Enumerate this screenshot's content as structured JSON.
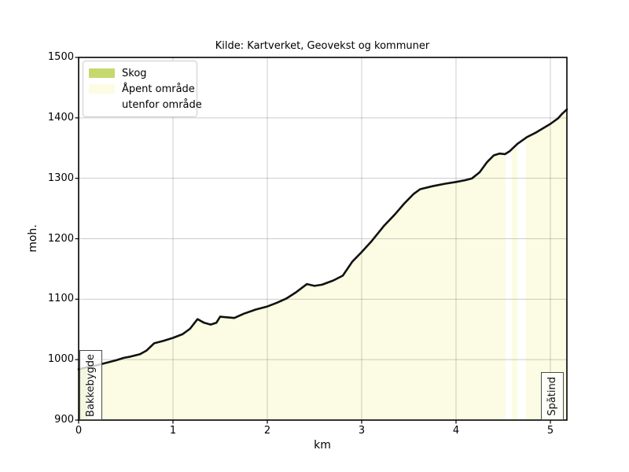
{
  "figure": {
    "title": "Kilde: Kartverket, Geovekst og kommuner",
    "xlabel": "km",
    "ylabel": "moh."
  },
  "legend": {
    "entries": [
      {
        "label": "Skog",
        "color": "#c5d96d"
      },
      {
        "label": "Åpent område",
        "color": "#fbfce3"
      },
      {
        "label": "utenfor område",
        "color": "#ffffff"
      }
    ]
  },
  "annotations": [
    {
      "text": "Bakkebygde",
      "x_km": 0.13
    },
    {
      "text": "Spåtind",
      "x_km": 5.02
    }
  ],
  "chart_data": {
    "type": "area",
    "title": "Kilde: Kartverket, Geovekst og kommuner",
    "xlabel": "km",
    "ylabel": "moh.",
    "xlim": [
      0,
      5.175
    ],
    "ylim": [
      900,
      1500
    ],
    "xticks": [
      0,
      1,
      2,
      3,
      4,
      5
    ],
    "yticks": [
      900,
      1000,
      1100,
      1200,
      1300,
      1400,
      1500
    ],
    "grid": true,
    "line_color": "#111111",
    "grid_color": "rgba(120,120,120,0.38)",
    "frame_color": "#000000",
    "profile": [
      [
        0.0,
        984
      ],
      [
        0.05,
        986
      ],
      [
        0.1,
        988
      ],
      [
        0.2,
        991
      ],
      [
        0.3,
        995
      ],
      [
        0.4,
        999
      ],
      [
        0.48,
        1003
      ],
      [
        0.55,
        1005
      ],
      [
        0.65,
        1009
      ],
      [
        0.72,
        1015
      ],
      [
        0.8,
        1027
      ],
      [
        0.9,
        1031
      ],
      [
        1.0,
        1036
      ],
      [
        1.1,
        1042
      ],
      [
        1.18,
        1051
      ],
      [
        1.26,
        1067
      ],
      [
        1.33,
        1061
      ],
      [
        1.4,
        1058
      ],
      [
        1.46,
        1061
      ],
      [
        1.5,
        1071
      ],
      [
        1.58,
        1070
      ],
      [
        1.65,
        1069
      ],
      [
        1.75,
        1076
      ],
      [
        1.88,
        1083
      ],
      [
        2.0,
        1088
      ],
      [
        2.1,
        1094
      ],
      [
        2.2,
        1101
      ],
      [
        2.3,
        1111
      ],
      [
        2.42,
        1125
      ],
      [
        2.5,
        1122
      ],
      [
        2.58,
        1124
      ],
      [
        2.7,
        1131
      ],
      [
        2.8,
        1139
      ],
      [
        2.9,
        1162
      ],
      [
        3.0,
        1178
      ],
      [
        3.1,
        1195
      ],
      [
        3.24,
        1222
      ],
      [
        3.35,
        1240
      ],
      [
        3.45,
        1258
      ],
      [
        3.55,
        1274
      ],
      [
        3.62,
        1282
      ],
      [
        3.75,
        1287
      ],
      [
        3.88,
        1291
      ],
      [
        4.0,
        1294
      ],
      [
        4.1,
        1297
      ],
      [
        4.17,
        1300
      ],
      [
        4.25,
        1310
      ],
      [
        4.33,
        1327
      ],
      [
        4.4,
        1338
      ],
      [
        4.46,
        1341
      ],
      [
        4.52,
        1340
      ],
      [
        4.57,
        1345
      ],
      [
        4.65,
        1357
      ],
      [
        4.75,
        1368
      ],
      [
        4.85,
        1376
      ],
      [
        5.0,
        1390
      ],
      [
        5.08,
        1399
      ],
      [
        5.12,
        1406
      ],
      [
        5.175,
        1414
      ]
    ],
    "regions": [
      {
        "name": "Skog",
        "from": 0.0,
        "to": 0.09,
        "color": "#c5d96d"
      },
      {
        "name": "Åpent område",
        "from": 0.09,
        "to": 4.525,
        "color": "#fbfce3"
      },
      {
        "name": "utenfor område",
        "from": 4.525,
        "to": 4.59,
        "color": "#ffffff"
      },
      {
        "name": "Åpent område",
        "from": 4.59,
        "to": 4.65,
        "color": "#fbfce3"
      },
      {
        "name": "utenfor område",
        "from": 4.65,
        "to": 4.74,
        "color": "#ffffff"
      },
      {
        "name": "Åpent område",
        "from": 4.74,
        "to": 5.175,
        "color": "#fbfce3"
      }
    ]
  }
}
